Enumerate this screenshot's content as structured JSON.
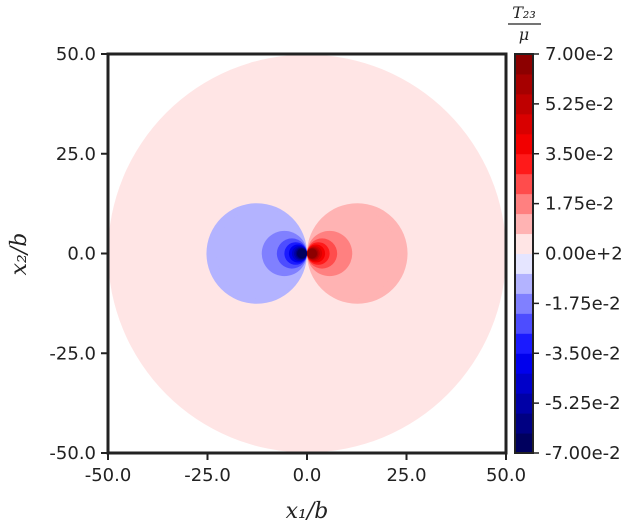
{
  "chart_data": {
    "type": "heatmap",
    "title": "",
    "xlabel": "x₁/b",
    "ylabel": "x₂/b",
    "xlim": [
      -50.0,
      50.0
    ],
    "ylim": [
      -50.0,
      50.0
    ],
    "x_ticks": [
      "-50.0",
      "-25.0",
      "0.0",
      "25.0",
      "50.0"
    ],
    "y_ticks": [
      "-50.0",
      "-25.0",
      "0.0",
      "25.0",
      "50.0"
    ],
    "grid": false,
    "colorbar": {
      "title_numerator": "T₂₃",
      "title_denominator": "μ",
      "range": [
        -0.07,
        0.07
      ],
      "levels": 20,
      "colormap": "seismic",
      "tick_labels": [
        "7.00e-2",
        "5.25e-2",
        "3.50e-2",
        "1.75e-2",
        "0.00e+2",
        "-1.75e-2",
        "-3.50e-2",
        "-5.25e-2",
        "-7.00e-2"
      ]
    },
    "field": {
      "description_of_data": "screw dislocation shear stress T23/mu = x1 / (2*pi*(x1^2+x2^2)) clipped to circular domain",
      "domain_radius": 50.0,
      "center": [
        0.0,
        0.0
      ]
    }
  }
}
